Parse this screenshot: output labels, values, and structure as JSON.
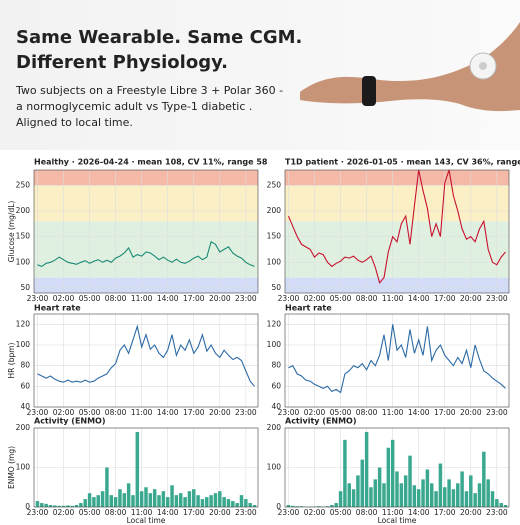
{
  "header": {
    "title": [
      "Same Wearable. Same CGM.",
      "Different Physiology."
    ],
    "subtitle": [
      "Two subjects on a Freestyle Libre 3 + Polar 360 -",
      "a normoglycemic adult vs Type-1 diabetic .",
      "Aligned to local time."
    ]
  },
  "chart_data": [
    {
      "type": "line",
      "title": "Healthy · 2026-04-24 · mean 108, CV 11%, range 58",
      "ylabel": "Glucose (mg/dL)",
      "color": "#1a8a75",
      "bands": [
        {
          "from": 40,
          "to": 70,
          "color": "#d3dcf6"
        },
        {
          "from": 70,
          "to": 180,
          "color": "#e0f0e0"
        },
        {
          "from": 180,
          "to": 250,
          "color": "#fbefc6"
        },
        {
          "from": 250,
          "to": 280,
          "color": "#f5b9a8"
        }
      ],
      "x": [
        0,
        0.5,
        1,
        1.5,
        2,
        2.5,
        3,
        3.5,
        4,
        4.5,
        5,
        5.5,
        6,
        6.5,
        7,
        7.5,
        8,
        8.5,
        9,
        9.5,
        10,
        10.5,
        11,
        11.5,
        12,
        12.5,
        13,
        13.5,
        14,
        14.5,
        15,
        15.5,
        16,
        16.5,
        17,
        17.5,
        18,
        18.5,
        19,
        19.5,
        20,
        20.5,
        21,
        21.5,
        22,
        22.5,
        23,
        23.5,
        24,
        24.5,
        25
      ],
      "values": [
        95,
        92,
        98,
        100,
        104,
        110,
        105,
        100,
        98,
        96,
        100,
        103,
        98,
        102,
        105,
        100,
        104,
        100,
        108,
        112,
        118,
        128,
        110,
        115,
        112,
        120,
        118,
        112,
        105,
        110,
        104,
        100,
        106,
        100,
        98,
        102,
        108,
        112,
        105,
        110,
        140,
        135,
        120,
        125,
        130,
        118,
        112,
        108,
        100,
        95,
        92
      ],
      "xlim": [
        -0.4,
        25.4
      ],
      "xticks": [
        {
          "value": 0,
          "label": "23:00"
        },
        {
          "value": 3,
          "label": "02:00"
        },
        {
          "value": 6,
          "label": "05:00"
        },
        {
          "value": 9,
          "label": "08:00"
        },
        {
          "value": 12,
          "label": "11:00"
        },
        {
          "value": 15,
          "label": "14:00"
        },
        {
          "value": 18,
          "label": "17:00"
        },
        {
          "value": 21,
          "label": "20:00"
        },
        {
          "value": 24,
          "label": "23:00"
        }
      ],
      "ylim": [
        40,
        280
      ],
      "yticks": [
        50,
        100,
        150,
        200,
        250
      ],
      "grid": true
    },
    {
      "type": "line",
      "title": "T1D patient · 2026-01-05 · mean 143, CV 36%, range 244",
      "color": "#c8102e",
      "bands": [
        {
          "from": 40,
          "to": 70,
          "color": "#d3dcf6"
        },
        {
          "from": 70,
          "to": 180,
          "color": "#e0f0e0"
        },
        {
          "from": 180,
          "to": 250,
          "color": "#fbefc6"
        },
        {
          "from": 250,
          "to": 280,
          "color": "#f5b9a8"
        }
      ],
      "x": [
        0,
        0.5,
        1,
        1.5,
        2,
        2.5,
        3,
        3.5,
        4,
        4.5,
        5,
        5.5,
        6,
        6.5,
        7,
        7.5,
        8,
        8.5,
        9,
        9.5,
        10,
        10.5,
        11,
        11.5,
        12,
        12.5,
        13,
        13.5,
        14,
        14.5,
        15,
        15.5,
        16,
        16.5,
        17,
        17.5,
        18,
        18.5,
        19,
        19.5,
        20,
        20.5,
        21,
        21.5,
        22,
        22.5,
        23,
        23.5,
        24,
        24.5,
        25
      ],
      "values": [
        190,
        170,
        150,
        135,
        130,
        125,
        110,
        118,
        115,
        100,
        92,
        98,
        102,
        110,
        108,
        112,
        104,
        100,
        105,
        112,
        90,
        60,
        70,
        120,
        150,
        140,
        175,
        190,
        135,
        210,
        280,
        240,
        205,
        150,
        175,
        150,
        255,
        280,
        230,
        200,
        165,
        145,
        150,
        140,
        165,
        180,
        125,
        100,
        95,
        110,
        120
      ],
      "xlim": [
        -0.4,
        25.4
      ],
      "xticks": [
        {
          "value": 0,
          "label": "23:00"
        },
        {
          "value": 3,
          "label": "02:00"
        },
        {
          "value": 6,
          "label": "05:00"
        },
        {
          "value": 9,
          "label": "08:00"
        },
        {
          "value": 12,
          "label": "11:00"
        },
        {
          "value": 15,
          "label": "14:00"
        },
        {
          "value": 18,
          "label": "17:00"
        },
        {
          "value": 21,
          "label": "20:00"
        },
        {
          "value": 24,
          "label": "23:00"
        }
      ],
      "ylim": [
        40,
        280
      ],
      "yticks": [
        50,
        100,
        150,
        200,
        250
      ],
      "grid": true
    },
    {
      "type": "line",
      "title": "Heart rate",
      "ylabel": "HR (bpm)",
      "color": "#2b6aa6",
      "x": [
        0,
        0.5,
        1,
        1.5,
        2,
        2.5,
        3,
        3.5,
        4,
        4.5,
        5,
        5.5,
        6,
        6.5,
        7,
        7.5,
        8,
        8.5,
        9,
        9.5,
        10,
        10.5,
        11,
        11.5,
        12,
        12.5,
        13,
        13.5,
        14,
        14.5,
        15,
        15.5,
        16,
        16.5,
        17,
        17.5,
        18,
        18.5,
        19,
        19.5,
        20,
        20.5,
        21,
        21.5,
        22,
        22.5,
        23,
        23.5,
        24,
        24.5,
        25
      ],
      "values": [
        72,
        70,
        68,
        70,
        67,
        65,
        64,
        66,
        64,
        65,
        64,
        66,
        64,
        65,
        68,
        70,
        72,
        78,
        82,
        95,
        100,
        92,
        105,
        118,
        98,
        110,
        96,
        100,
        92,
        88,
        95,
        110,
        90,
        100,
        95,
        105,
        92,
        98,
        110,
        94,
        100,
        92,
        88,
        95,
        90,
        86,
        88,
        85,
        75,
        65,
        60
      ],
      "xlim": [
        -0.4,
        25.4
      ],
      "xticks": [
        {
          "value": 0,
          "label": "23:00"
        },
        {
          "value": 3,
          "label": "02:00"
        },
        {
          "value": 6,
          "label": "05:00"
        },
        {
          "value": 9,
          "label": "08:00"
        },
        {
          "value": 12,
          "label": "11:00"
        },
        {
          "value": 15,
          "label": "14:00"
        },
        {
          "value": 18,
          "label": "17:00"
        },
        {
          "value": 21,
          "label": "20:00"
        },
        {
          "value": 24,
          "label": "23:00"
        }
      ],
      "ylim": [
        40,
        130
      ],
      "yticks": [
        40,
        60,
        80,
        100,
        120
      ],
      "grid": true
    },
    {
      "type": "line",
      "title": "Heart rate",
      "color": "#2b6aa6",
      "x": [
        0,
        0.5,
        1,
        1.5,
        2,
        2.5,
        3,
        3.5,
        4,
        4.5,
        5,
        5.5,
        6,
        6.5,
        7,
        7.5,
        8,
        8.5,
        9,
        9.5,
        10,
        10.5,
        11,
        11.5,
        12,
        12.5,
        13,
        13.5,
        14,
        14.5,
        15,
        15.5,
        16,
        16.5,
        17,
        17.5,
        18,
        18.5,
        19,
        19.5,
        20,
        20.5,
        21,
        21.5,
        22,
        22.5,
        23,
        23.5,
        24,
        24.5,
        25
      ],
      "values": [
        78,
        80,
        72,
        70,
        66,
        65,
        62,
        60,
        58,
        60,
        55,
        57,
        54,
        72,
        75,
        80,
        78,
        82,
        76,
        85,
        80,
        90,
        110,
        85,
        120,
        95,
        100,
        88,
        115,
        92,
        105,
        90,
        118,
        85,
        95,
        100,
        90,
        85,
        80,
        88,
        82,
        95,
        78,
        100,
        86,
        75,
        72,
        68,
        65,
        62,
        58
      ],
      "xlim": [
        -0.4,
        25.4
      ],
      "xticks": [
        {
          "value": 0,
          "label": "23:00"
        },
        {
          "value": 3,
          "label": "02:00"
        },
        {
          "value": 6,
          "label": "05:00"
        },
        {
          "value": 9,
          "label": "08:00"
        },
        {
          "value": 12,
          "label": "11:00"
        },
        {
          "value": 15,
          "label": "14:00"
        },
        {
          "value": 18,
          "label": "17:00"
        },
        {
          "value": 21,
          "label": "20:00"
        },
        {
          "value": 24,
          "label": "23:00"
        }
      ],
      "ylim": [
        40,
        130
      ],
      "yticks": [
        40,
        60,
        80,
        100,
        120
      ],
      "grid": true
    },
    {
      "type": "bar",
      "title": "Activity (ENMO)",
      "ylabel": "ENMO (mg)",
      "xlabel": "Local time",
      "color": "#3aa88f",
      "x": [
        0,
        0.5,
        1,
        1.5,
        2,
        2.5,
        3,
        3.5,
        4,
        4.5,
        5,
        5.5,
        6,
        6.5,
        7,
        7.5,
        8,
        8.5,
        9,
        9.5,
        10,
        10.5,
        11,
        11.5,
        12,
        12.5,
        13,
        13.5,
        14,
        14.5,
        15,
        15.5,
        16,
        16.5,
        17,
        17.5,
        18,
        18.5,
        19,
        19.5,
        20,
        20.5,
        21,
        21.5,
        22,
        22.5,
        23,
        23.5,
        24,
        24.5,
        25
      ],
      "values": [
        15,
        10,
        8,
        5,
        4,
        3,
        3,
        4,
        3,
        5,
        10,
        20,
        35,
        25,
        30,
        40,
        100,
        30,
        25,
        45,
        35,
        60,
        30,
        190,
        40,
        50,
        35,
        45,
        30,
        40,
        25,
        55,
        30,
        35,
        25,
        40,
        45,
        30,
        20,
        25,
        30,
        35,
        40,
        25,
        20,
        15,
        10,
        30,
        20,
        10,
        5
      ],
      "xlim": [
        -0.4,
        25.4
      ],
      "xticks": [
        {
          "value": 0,
          "label": "23:00"
        },
        {
          "value": 3,
          "label": "02:00"
        },
        {
          "value": 6,
          "label": "05:00"
        },
        {
          "value": 9,
          "label": "08:00"
        },
        {
          "value": 12,
          "label": "11:00"
        },
        {
          "value": 15,
          "label": "14:00"
        },
        {
          "value": 18,
          "label": "17:00"
        },
        {
          "value": 21,
          "label": "20:00"
        },
        {
          "value": 24,
          "label": "23:00"
        }
      ],
      "ylim": [
        0,
        200
      ],
      "yticks": [
        0,
        100,
        200
      ],
      "grid": true
    },
    {
      "type": "bar",
      "title": "Activity (ENMO)",
      "xlabel": "Local time",
      "color": "#3aa88f",
      "x": [
        0,
        0.5,
        1,
        1.5,
        2,
        2.5,
        3,
        3.5,
        4,
        4.5,
        5,
        5.5,
        6,
        6.5,
        7,
        7.5,
        8,
        8.5,
        9,
        9.5,
        10,
        10.5,
        11,
        11.5,
        12,
        12.5,
        13,
        13.5,
        14,
        14.5,
        15,
        15.5,
        16,
        16.5,
        17,
        17.5,
        18,
        18.5,
        19,
        19.5,
        20,
        20.5,
        21,
        21.5,
        22,
        22.5,
        23,
        23.5,
        24,
        24.5,
        25
      ],
      "values": [
        5,
        3,
        2,
        2,
        1,
        1,
        1,
        2,
        1,
        2,
        5,
        10,
        40,
        170,
        60,
        45,
        80,
        120,
        190,
        50,
        70,
        100,
        60,
        150,
        170,
        90,
        60,
        80,
        130,
        55,
        45,
        70,
        95,
        60,
        40,
        110,
        50,
        70,
        45,
        60,
        90,
        40,
        80,
        35,
        60,
        140,
        70,
        40,
        20,
        10,
        5
      ],
      "xlim": [
        -0.4,
        25.4
      ],
      "xticks": [
        {
          "value": 0,
          "label": "23:00"
        },
        {
          "value": 3,
          "label": "02:00"
        },
        {
          "value": 6,
          "label": "05:00"
        },
        {
          "value": 9,
          "label": "08:00"
        },
        {
          "value": 12,
          "label": "11:00"
        },
        {
          "value": 15,
          "label": "14:00"
        },
        {
          "value": 18,
          "label": "17:00"
        },
        {
          "value": 21,
          "label": "20:00"
        },
        {
          "value": 24,
          "label": "23:00"
        }
      ],
      "ylim": [
        0,
        200
      ],
      "yticks": [
        0,
        100,
        200
      ],
      "grid": true
    }
  ]
}
